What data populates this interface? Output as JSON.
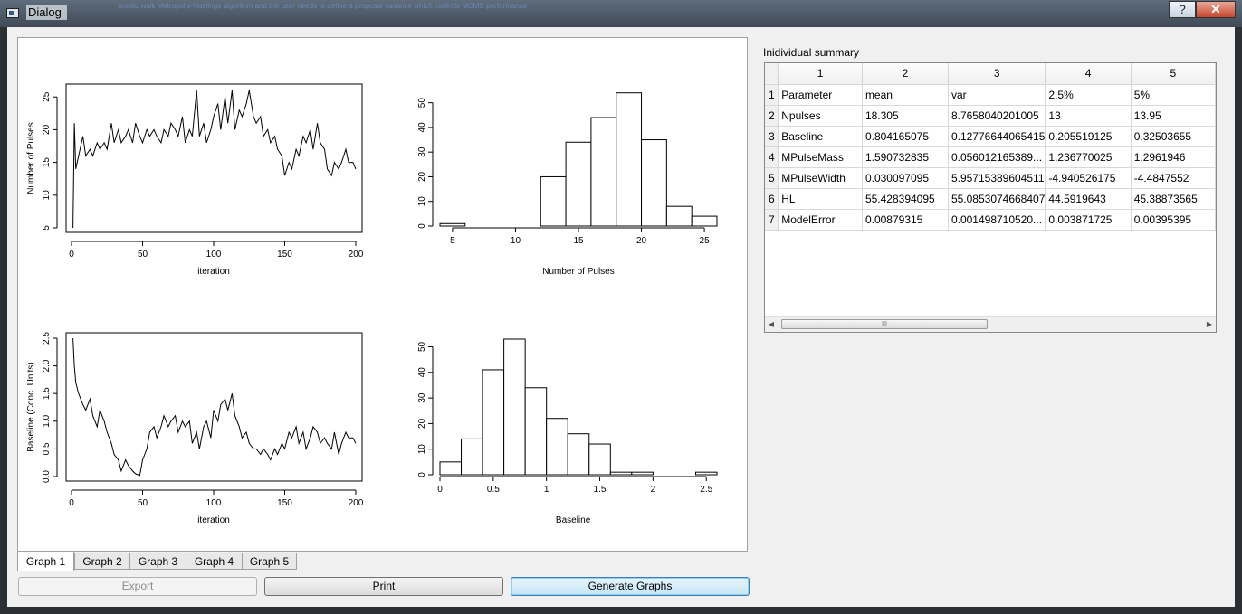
{
  "window": {
    "title": "Dialog",
    "help_label": "?",
    "close_label": "✕",
    "blurred_text": [
      "srostic walk Metropolis-Hastings algorithm and the user needs to define a proposal variance  which controls MCMC performance"
    ]
  },
  "tabs": [
    "Graph 1",
    "Graph 2",
    "Graph 3",
    "Graph 4",
    "Graph 5"
  ],
  "active_tab": 0,
  "buttons": {
    "export": "Export",
    "print": "Print",
    "generate": "Generate Graphs"
  },
  "summary": {
    "label": "Inidividual summary",
    "columns": [
      "1",
      "2",
      "3",
      "4",
      "5"
    ],
    "rows": [
      {
        "num": "1",
        "cells": [
          "Parameter",
          "mean",
          "var",
          "2.5%",
          "5%"
        ]
      },
      {
        "num": "2",
        "cells": [
          "Npulses",
          "18.305",
          "8.7658040201005",
          "13",
          "13.95"
        ]
      },
      {
        "num": "3",
        "cells": [
          "Baseline",
          "0.804165075",
          "0.12776644065415",
          "0.205519125",
          "0.32503655"
        ]
      },
      {
        "num": "4",
        "cells": [
          "MPulseMass",
          "1.590732835",
          "0.056012165389...",
          "1.236770025",
          "1.2961946"
        ]
      },
      {
        "num": "5",
        "cells": [
          "MPulseWidth",
          "0.030097095",
          "5.95715389604511",
          "-4.940526175",
          "-4.4847552"
        ]
      },
      {
        "num": "6",
        "cells": [
          "HL",
          "55.428394095",
          "55.0853074668407",
          "44.5919643",
          "45.38873565"
        ]
      },
      {
        "num": "7",
        "cells": [
          "ModelError",
          "0.00879315",
          "0.001498710520...",
          "0.003871725",
          "0.00395395"
        ]
      }
    ],
    "scroll_thumb_grip": "III"
  },
  "chart_data": [
    {
      "type": "line",
      "xlabel": "iteration",
      "ylabel": "Number of Pulses",
      "xlim": [
        0,
        200
      ],
      "ylim": [
        5,
        26
      ],
      "xticks": [
        0,
        50,
        100,
        150,
        200
      ],
      "yticks": [
        5,
        10,
        15,
        20,
        25
      ],
      "x": [
        1,
        2,
        3,
        5,
        8,
        10,
        13,
        15,
        18,
        20,
        23,
        25,
        28,
        30,
        33,
        35,
        38,
        40,
        43,
        45,
        48,
        50,
        53,
        55,
        58,
        60,
        63,
        65,
        68,
        70,
        73,
        75,
        78,
        80,
        83,
        85,
        88,
        90,
        93,
        95,
        98,
        100,
        103,
        105,
        108,
        110,
        113,
        115,
        118,
        120,
        123,
        125,
        128,
        130,
        133,
        135,
        138,
        140,
        143,
        145,
        148,
        150,
        153,
        155,
        158,
        160,
        163,
        165,
        168,
        170,
        173,
        175,
        178,
        180,
        183,
        185,
        188,
        190,
        193,
        195,
        198,
        200
      ],
      "y": [
        5,
        21,
        14,
        16,
        19,
        16,
        17,
        16,
        18,
        17,
        18,
        17,
        21,
        18,
        20,
        18,
        19,
        20,
        18,
        21,
        19,
        18,
        20,
        19,
        20,
        19,
        18,
        20,
        19,
        21,
        20,
        19,
        22,
        18,
        20,
        19,
        26,
        19,
        21,
        18,
        20,
        22,
        24,
        20,
        25,
        21,
        26,
        20,
        23,
        22,
        24,
        26,
        22,
        21,
        22,
        19,
        20,
        18,
        19,
        17,
        16,
        13,
        15,
        14,
        17,
        16,
        19,
        18,
        20,
        17,
        21,
        18,
        17,
        14,
        13,
        15,
        14,
        15,
        17,
        15,
        15,
        14
      ]
    },
    {
      "type": "bar",
      "xlabel": "Number of Pulses",
      "ylabel": "",
      "xlim": [
        4,
        26
      ],
      "ylim": [
        0,
        55
      ],
      "xticks": [
        5,
        10,
        15,
        20,
        25
      ],
      "yticks": [
        0,
        10,
        20,
        30,
        40,
        50
      ],
      "bin_edges": [
        4,
        6,
        8,
        10,
        12,
        14,
        16,
        18,
        20,
        22,
        24,
        26
      ],
      "values": [
        1,
        0,
        0,
        0,
        20,
        34,
        44,
        54,
        35,
        8,
        4
      ]
    },
    {
      "type": "line",
      "xlabel": "iteration",
      "ylabel": "Baseline (Conc. Units)",
      "xlim": [
        0,
        200
      ],
      "ylim": [
        0,
        2.5
      ],
      "xticks": [
        0,
        50,
        100,
        150,
        200
      ],
      "yticks": [
        0.0,
        0.5,
        1.0,
        1.5,
        2.0,
        2.5
      ],
      "x": [
        1,
        2,
        3,
        5,
        8,
        10,
        13,
        15,
        18,
        20,
        23,
        25,
        28,
        30,
        33,
        35,
        38,
        40,
        43,
        45,
        48,
        50,
        53,
        55,
        58,
        60,
        63,
        65,
        68,
        70,
        73,
        75,
        78,
        80,
        83,
        85,
        88,
        90,
        93,
        95,
        98,
        100,
        103,
        105,
        108,
        110,
        113,
        115,
        118,
        120,
        123,
        125,
        128,
        130,
        133,
        135,
        138,
        140,
        143,
        145,
        148,
        150,
        153,
        155,
        158,
        160,
        163,
        165,
        168,
        170,
        173,
        175,
        178,
        180,
        183,
        185,
        188,
        190,
        193,
        195,
        198,
        200
      ],
      "y": [
        2.5,
        2.0,
        1.7,
        1.5,
        1.3,
        1.2,
        1.4,
        1.1,
        0.9,
        1.2,
        1.0,
        0.8,
        0.6,
        0.4,
        0.3,
        0.1,
        0.3,
        0.2,
        0.1,
        0.05,
        0.02,
        0.3,
        0.5,
        0.8,
        0.9,
        0.7,
        0.9,
        1.1,
        0.9,
        1.0,
        1.1,
        0.8,
        1.0,
        0.9,
        1.0,
        0.6,
        0.8,
        0.5,
        0.9,
        1.0,
        0.7,
        1.2,
        1.0,
        1.3,
        1.4,
        1.2,
        1.5,
        1.1,
        0.9,
        0.7,
        0.8,
        0.6,
        0.5,
        0.5,
        0.4,
        0.5,
        0.4,
        0.3,
        0.5,
        0.4,
        0.6,
        0.5,
        0.8,
        0.7,
        0.9,
        0.6,
        0.8,
        0.5,
        0.7,
        0.9,
        0.8,
        0.6,
        0.7,
        0.6,
        0.5,
        0.8,
        0.4,
        0.6,
        0.8,
        0.7,
        0.7,
        0.6
      ]
    },
    {
      "type": "bar",
      "xlabel": "Baseline",
      "ylabel": "",
      "xlim": [
        0,
        2.6
      ],
      "ylim": [
        0,
        53
      ],
      "xticks": [
        0.0,
        0.5,
        1.0,
        1.5,
        2.0,
        2.5
      ],
      "yticks": [
        0,
        10,
        20,
        30,
        40,
        50
      ],
      "bin_edges": [
        0,
        0.2,
        0.4,
        0.6,
        0.8,
        1.0,
        1.2,
        1.4,
        1.6,
        1.8,
        2.0,
        2.2,
        2.4,
        2.6
      ],
      "values": [
        5,
        14,
        41,
        53,
        34,
        22,
        16,
        12,
        1,
        1,
        0,
        0,
        1
      ]
    }
  ]
}
